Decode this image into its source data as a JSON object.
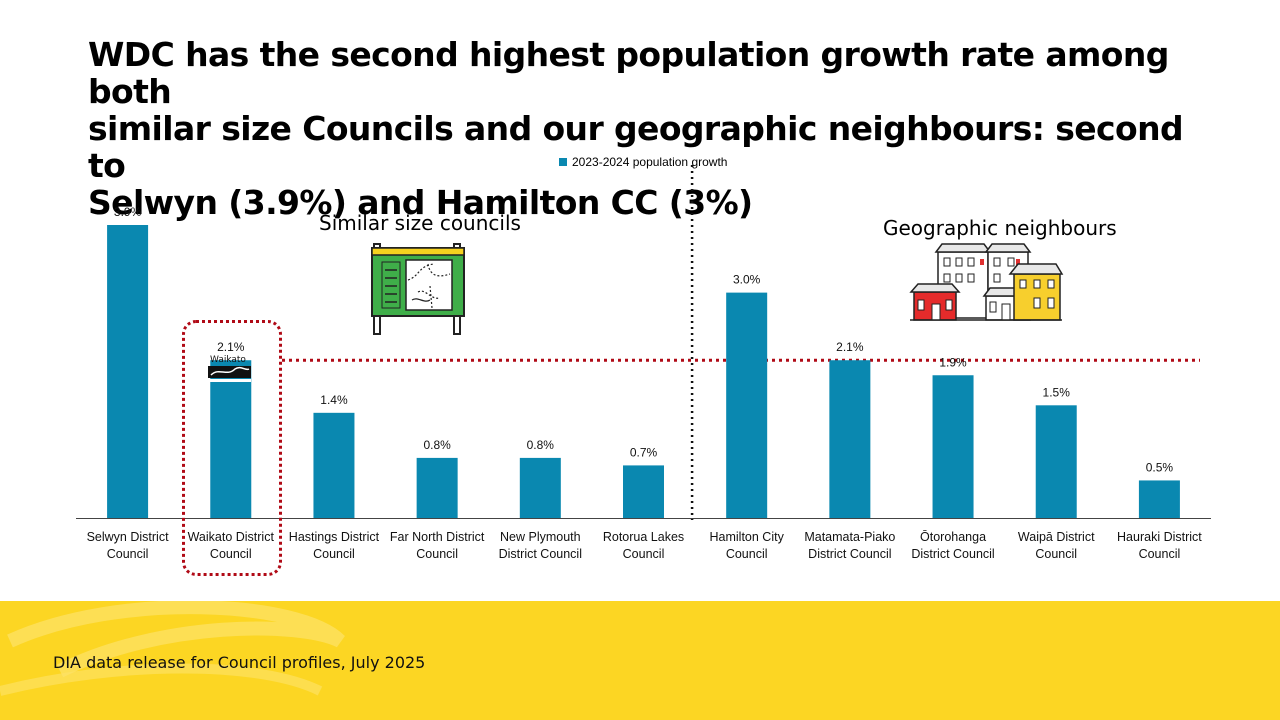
{
  "title_lines": [
    "WDC has the second highest population growth rate among both",
    "similar size Councils and our geographic neighbours: second to",
    "Selwyn (3.9%) and Hamilton CC (3%)"
  ],
  "footer": {
    "source": "DIA data release for Council profiles, July 2025"
  },
  "sections": {
    "similar": "Similar size councils",
    "geographic": "Geographic neighbours"
  },
  "logo": {
    "wordmark": "Waikato",
    "subtext": "District Council"
  },
  "colors": {
    "bar": "#0a88b0",
    "highlight": "#b00a16",
    "footer": "#fcd623"
  },
  "icons": {
    "similar": "map-board-icon",
    "geographic": "houses-icon"
  },
  "chart_data": {
    "type": "bar",
    "categories": [
      [
        "Selwyn District",
        "Council"
      ],
      [
        "Waikato District",
        "Council"
      ],
      [
        "Hastings District",
        "Council"
      ],
      [
        "Far North District",
        "Council"
      ],
      [
        "New Plymouth",
        "District Council"
      ],
      [
        "Rotorua Lakes",
        "Council"
      ],
      [
        "Hamilton City",
        "Council"
      ],
      [
        "Matamata-Piako",
        "District Council"
      ],
      [
        "Ōtorohanga",
        "District Council"
      ],
      [
        "Waipā District",
        "Council"
      ],
      [
        "Hauraki District",
        "Council"
      ]
    ],
    "series": [
      {
        "name": "2023-2024 population growth",
        "values": [
          3.9,
          2.1,
          1.4,
          0.8,
          0.8,
          0.7,
          3.0,
          2.1,
          1.9,
          1.5,
          0.5
        ],
        "labels": [
          "3.9%",
          "2.1%",
          "1.4%",
          "0.8%",
          "0.8%",
          "0.7%",
          "3.0%",
          "2.1%",
          "1.9%",
          "1.5%",
          "0.5%"
        ]
      }
    ],
    "reference_line": 2.1,
    "group_split_after": 5,
    "legend_position": "top-center",
    "ylim": [
      0,
      4.5
    ],
    "grid": false
  }
}
